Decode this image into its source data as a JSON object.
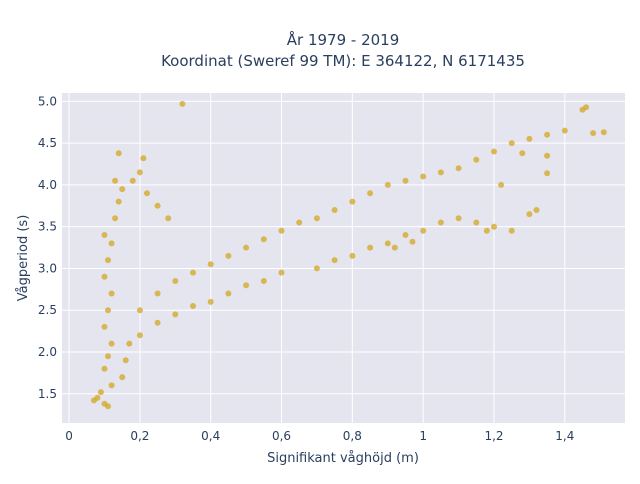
{
  "chart_data": {
    "type": "scatter",
    "title_lines": [
      "År 1979 - 2019",
      "Koordinat (Sweref 99 TM): E 364122, N 6171435"
    ],
    "xlabel": "Signifikant våghöjd (m)",
    "ylabel": "Vågperiod (s)",
    "xlim": [
      -0.02,
      1.57
    ],
    "ylim": [
      1.15,
      5.1
    ],
    "x_ticks": [
      0,
      0.2,
      0.4,
      0.6,
      0.8,
      1,
      1.2,
      1.4
    ],
    "x_tick_labels": [
      "0",
      "0,2",
      "0,4",
      "0,6",
      "0,8",
      "1",
      "1,2",
      "1,4"
    ],
    "y_ticks": [
      1.5,
      2.0,
      2.5,
      3.0,
      3.5,
      4.0,
      4.5,
      5.0
    ],
    "y_tick_labels": [
      "1.5",
      "2.0",
      "2.5",
      "3.0",
      "3.5",
      "4.0",
      "4.5",
      "5.0"
    ],
    "grid": true,
    "marker_color": "#d4a520",
    "plot_background": "#e5e5ef",
    "series": [
      {
        "points": [
          [
            0.07,
            1.42
          ],
          [
            0.08,
            1.45
          ],
          [
            0.09,
            1.52
          ],
          [
            0.1,
            1.38
          ],
          [
            0.11,
            1.35
          ],
          [
            0.12,
            1.6
          ],
          [
            0.1,
            1.8
          ],
          [
            0.11,
            1.95
          ],
          [
            0.12,
            2.1
          ],
          [
            0.1,
            2.3
          ],
          [
            0.11,
            2.5
          ],
          [
            0.12,
            2.7
          ],
          [
            0.1,
            2.9
          ],
          [
            0.11,
            3.1
          ],
          [
            0.12,
            3.3
          ],
          [
            0.1,
            3.4
          ],
          [
            0.13,
            3.6
          ],
          [
            0.14,
            3.8
          ],
          [
            0.15,
            3.95
          ],
          [
            0.13,
            4.05
          ],
          [
            0.14,
            4.38
          ],
          [
            0.18,
            4.05
          ],
          [
            0.2,
            4.15
          ],
          [
            0.21,
            4.32
          ],
          [
            0.22,
            3.9
          ],
          [
            0.25,
            3.75
          ],
          [
            0.28,
            3.6
          ],
          [
            0.32,
            4.97
          ],
          [
            0.15,
            1.7
          ],
          [
            0.16,
            1.9
          ],
          [
            0.17,
            2.1
          ],
          [
            0.2,
            2.2
          ],
          [
            0.25,
            2.35
          ],
          [
            0.3,
            2.45
          ],
          [
            0.35,
            2.55
          ],
          [
            0.4,
            2.6
          ],
          [
            0.45,
            2.7
          ],
          [
            0.5,
            2.8
          ],
          [
            0.55,
            2.85
          ],
          [
            0.6,
            2.95
          ],
          [
            0.2,
            2.5
          ],
          [
            0.25,
            2.7
          ],
          [
            0.3,
            2.85
          ],
          [
            0.35,
            2.95
          ],
          [
            0.4,
            3.05
          ],
          [
            0.45,
            3.15
          ],
          [
            0.5,
            3.25
          ],
          [
            0.55,
            3.35
          ],
          [
            0.6,
            3.45
          ],
          [
            0.65,
            3.55
          ],
          [
            0.7,
            3.6
          ],
          [
            0.75,
            3.7
          ],
          [
            0.8,
            3.8
          ],
          [
            0.85,
            3.9
          ],
          [
            0.9,
            4.0
          ],
          [
            0.95,
            4.05
          ],
          [
            1.0,
            4.1
          ],
          [
            1.05,
            4.15
          ],
          [
            0.7,
            3.0
          ],
          [
            0.75,
            3.1
          ],
          [
            0.8,
            3.15
          ],
          [
            0.85,
            3.25
          ],
          [
            0.9,
            3.3
          ],
          [
            0.95,
            3.4
          ],
          [
            1.0,
            3.45
          ],
          [
            1.05,
            3.55
          ],
          [
            1.1,
            3.6
          ],
          [
            1.15,
            3.55
          ],
          [
            1.2,
            3.5
          ],
          [
            1.25,
            3.45
          ],
          [
            1.1,
            4.2
          ],
          [
            1.15,
            4.3
          ],
          [
            1.2,
            4.4
          ],
          [
            1.25,
            4.5
          ],
          [
            1.3,
            4.55
          ],
          [
            1.35,
            4.6
          ],
          [
            1.4,
            4.65
          ],
          [
            1.45,
            4.9
          ],
          [
            1.46,
            4.93
          ],
          [
            1.48,
            4.62
          ],
          [
            1.51,
            4.63
          ],
          [
            1.35,
            4.14
          ],
          [
            1.35,
            4.35
          ],
          [
            1.28,
            4.38
          ],
          [
            1.3,
            3.65
          ],
          [
            1.32,
            3.7
          ],
          [
            1.22,
            4.0
          ],
          [
            1.18,
            3.45
          ],
          [
            0.97,
            3.32
          ],
          [
            0.92,
            3.25
          ]
        ]
      }
    ]
  }
}
